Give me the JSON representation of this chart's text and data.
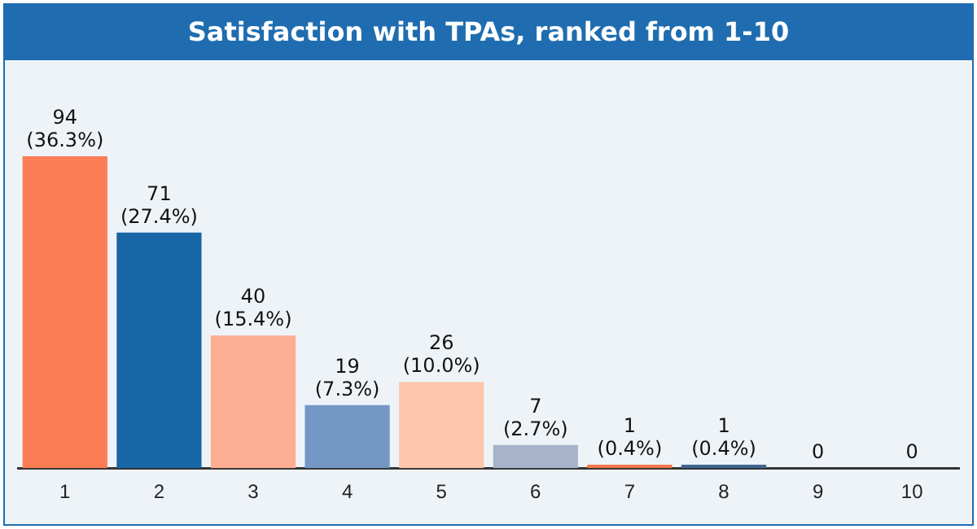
{
  "chart_data": {
    "type": "bar",
    "title": "Satisfaction with TPAs, ranked from 1-10",
    "categories": [
      "1",
      "2",
      "3",
      "4",
      "5",
      "6",
      "7",
      "8",
      "9",
      "10"
    ],
    "values": [
      94,
      71,
      40,
      19,
      26,
      7,
      1,
      1,
      0,
      0
    ],
    "colors": [
      "#fa7d55",
      "#1766a6",
      "#fcae92",
      "#7398c6",
      "#fdc6ad",
      "#a6b3c9",
      "#f0764c",
      "#3d6690",
      "#9aa5b5",
      "#9aa5b5"
    ],
    "value_labels": [
      "94 (36.3%)",
      "71 (27.4%)",
      "40 (15.4%)",
      "19 (7.3%)",
      "26 (10.0%)",
      "7 (2.7%)",
      "1 (0.4%)",
      "1 (0.4%)",
      "0",
      "0"
    ],
    "grid": false,
    "legend": false
  }
}
